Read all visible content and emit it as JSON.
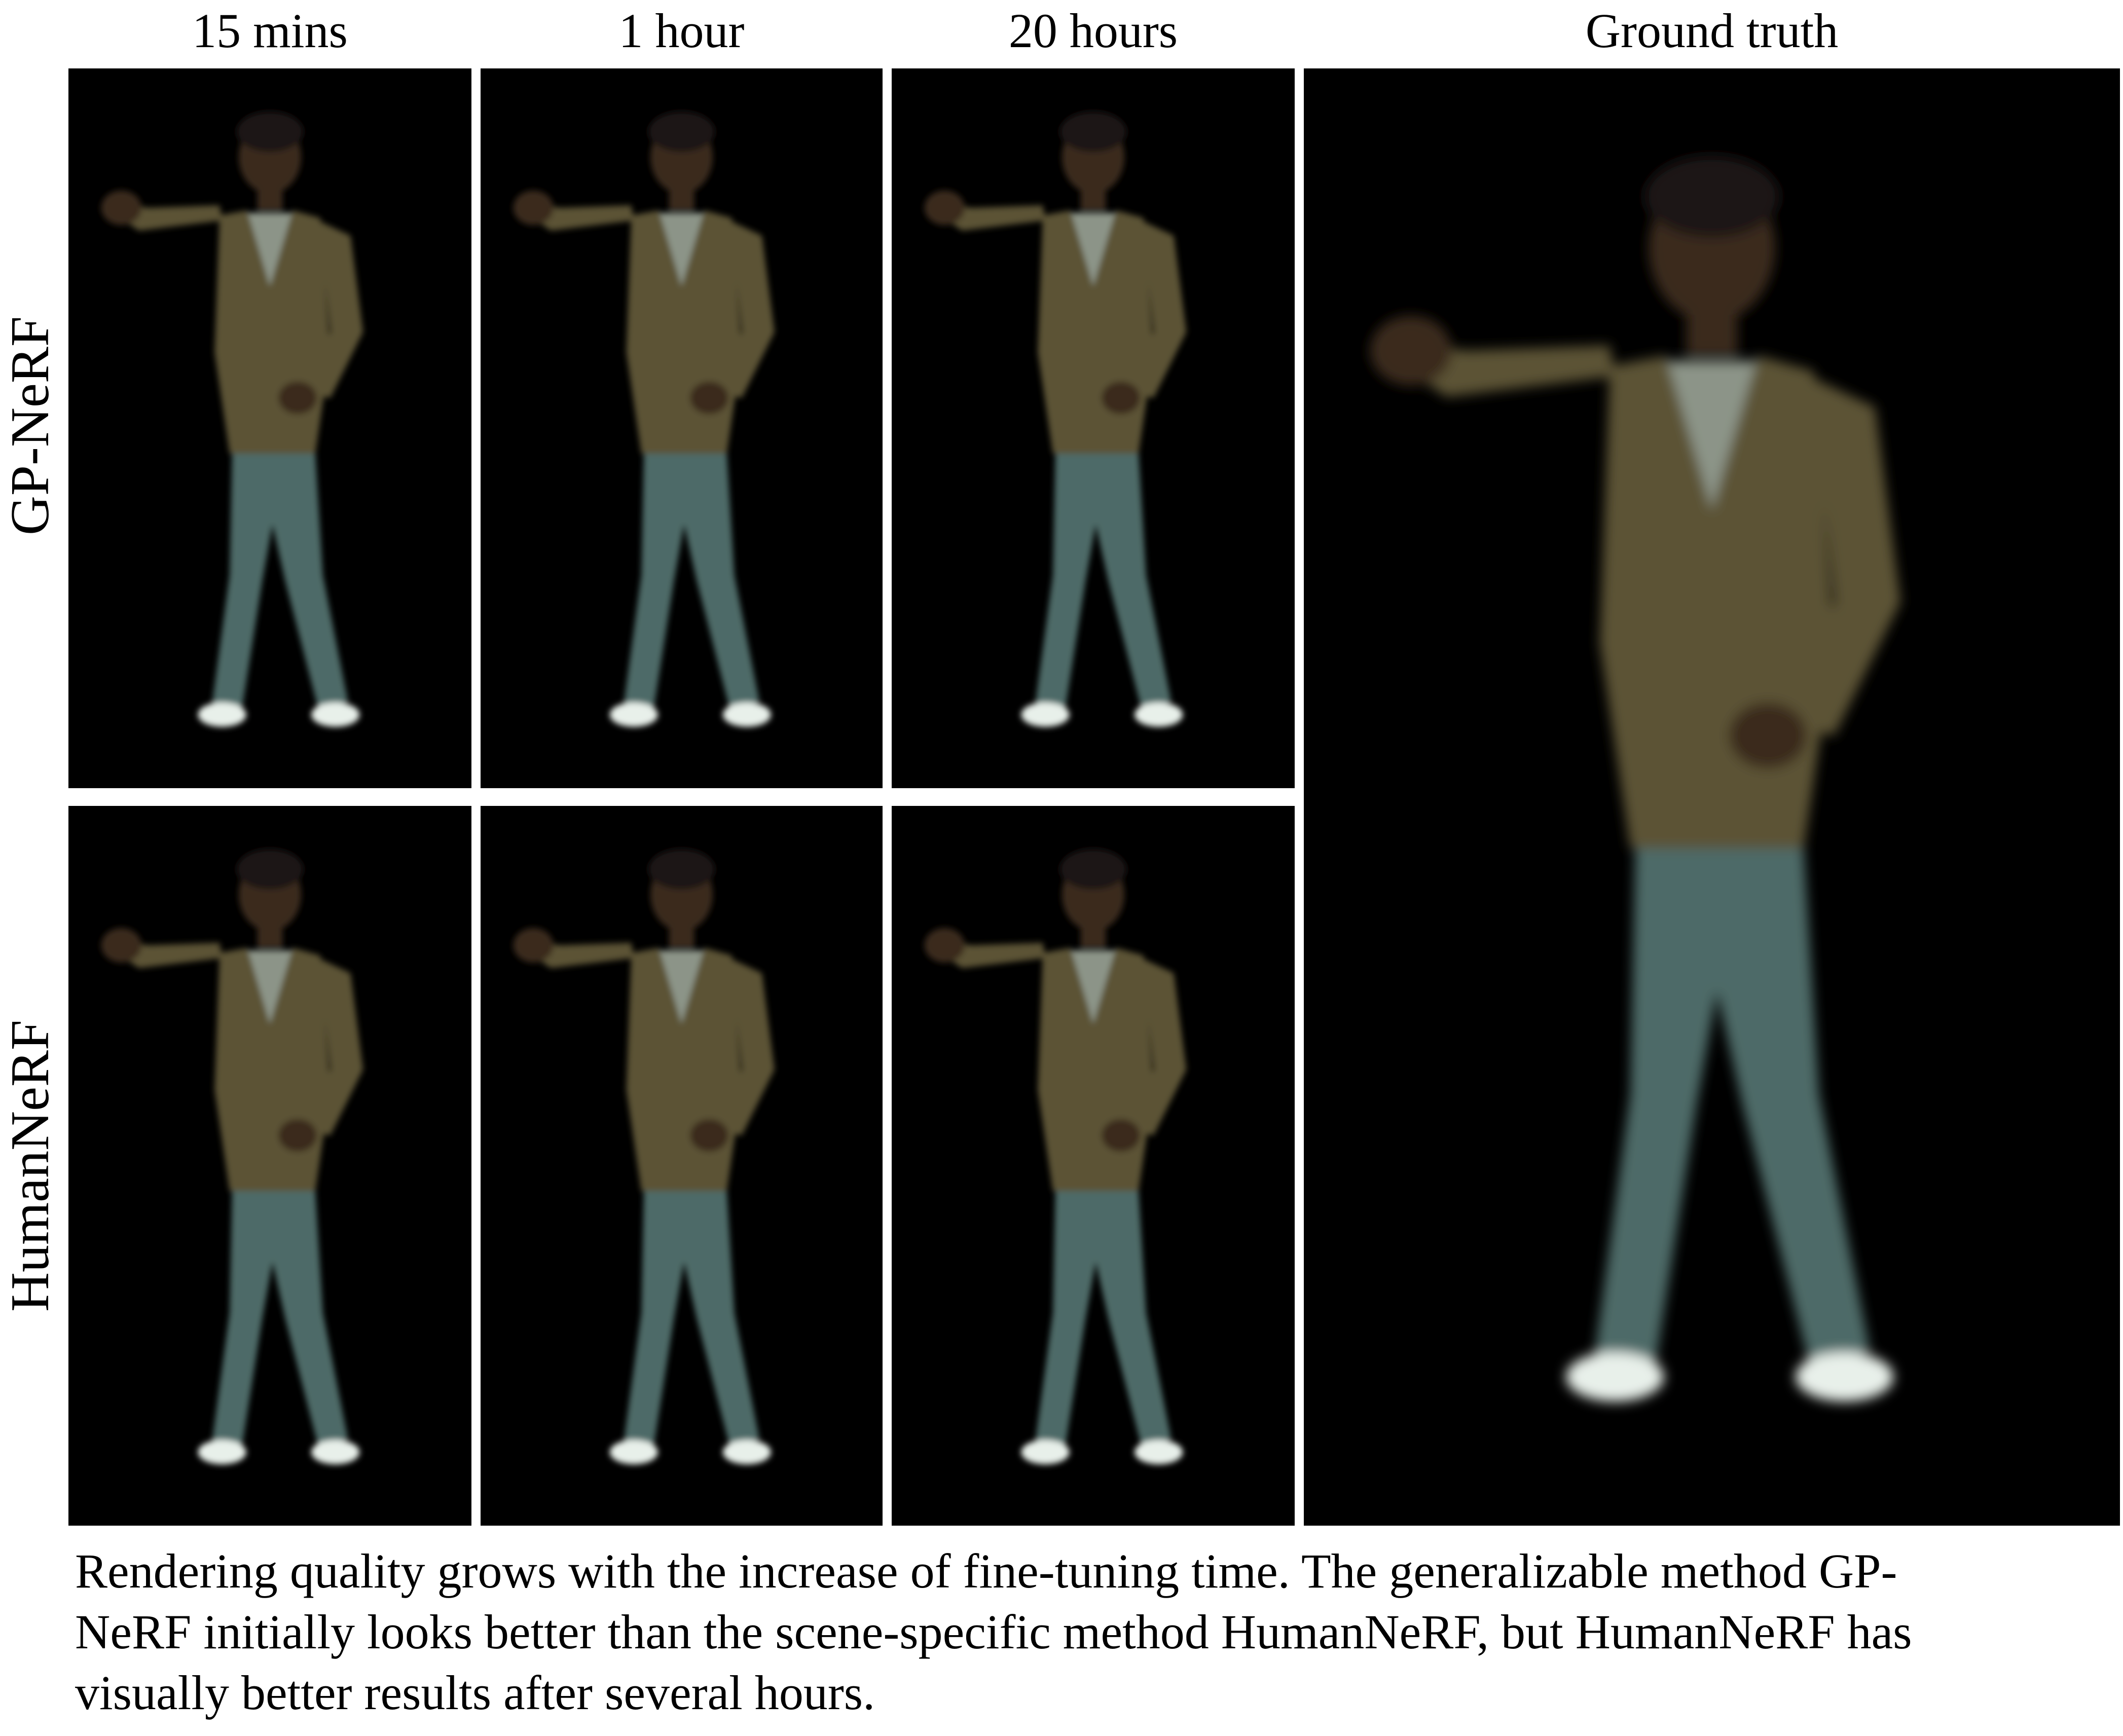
{
  "column_headers": [
    "15 mins",
    "1 hour",
    "20 hours",
    "Ground truth"
  ],
  "row_labels": [
    "GP-NeRF",
    "HumanNeRF"
  ],
  "caption_lines": [
    "Rendering quality grows with the increase of fine-tuning time. The generalizable method GP-",
    "NeRF initially looks better than the scene-specific method HumanNeRF, but HumanNeRF has",
    "visually better results after several hours."
  ],
  "colors": {
    "background": "#000000",
    "cardigan": "#5b5236",
    "jeans": "#4e6a67",
    "shirt": "#8c9488",
    "skin": "#3a2a1e",
    "hair": "#1a1612",
    "shoes": "#e8f0ea"
  }
}
